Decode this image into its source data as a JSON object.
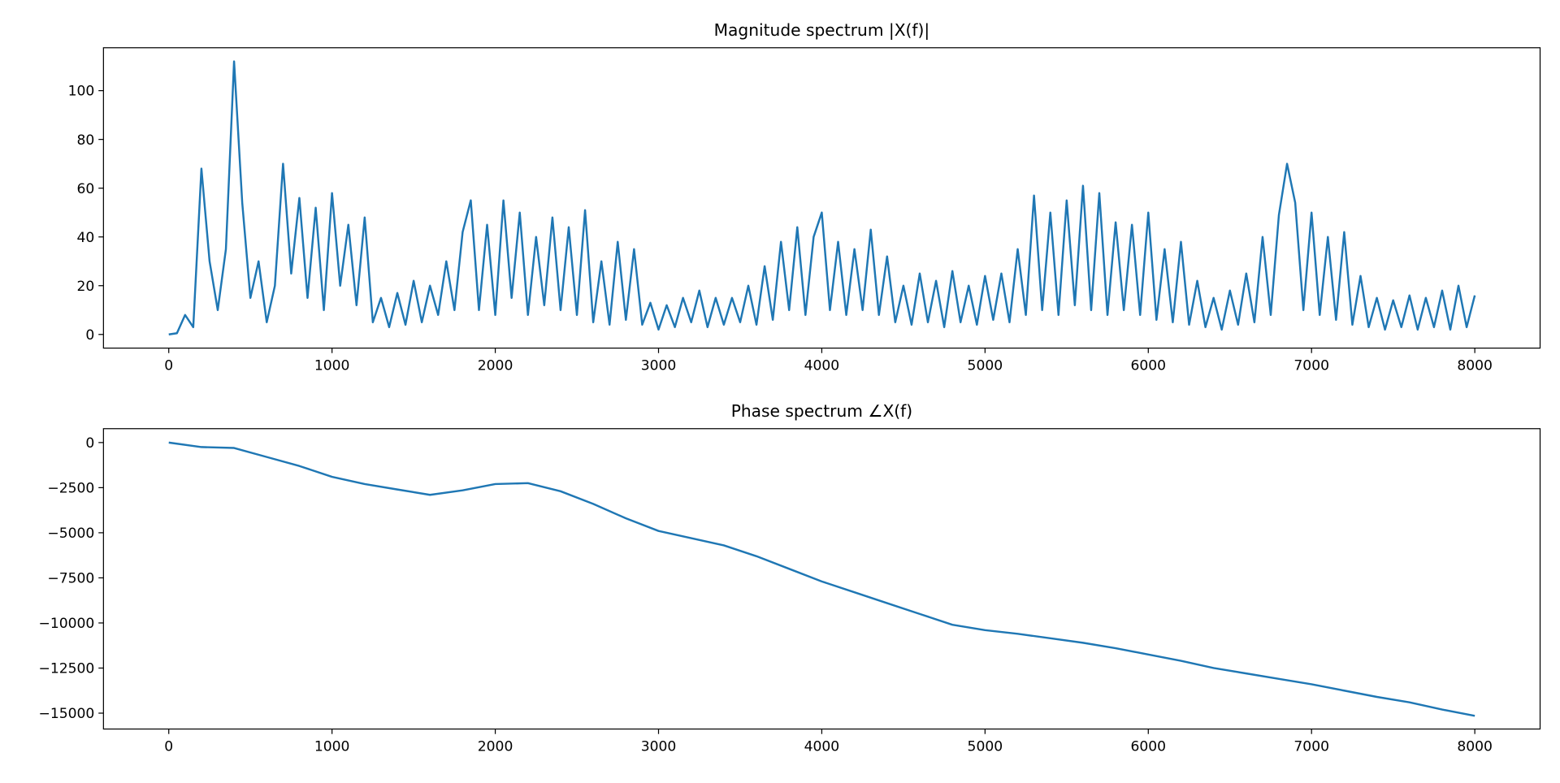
{
  "chart_data": [
    {
      "type": "line",
      "title": "Magnitude spectrum |X(f)|",
      "x": [
        0,
        50,
        100,
        150,
        200,
        250,
        300,
        350,
        400,
        450,
        500,
        550,
        600,
        650,
        700,
        750,
        800,
        850,
        900,
        950,
        1000,
        1050,
        1100,
        1150,
        1200,
        1250,
        1300,
        1350,
        1400,
        1450,
        1500,
        1550,
        1600,
        1650,
        1700,
        1750,
        1800,
        1850,
        1900,
        1950,
        2000,
        2050,
        2100,
        2150,
        2200,
        2250,
        2300,
        2350,
        2400,
        2450,
        2500,
        2550,
        2600,
        2650,
        2700,
        2750,
        2800,
        2850,
        2900,
        2950,
        3000,
        3050,
        3100,
        3150,
        3200,
        3250,
        3300,
        3350,
        3400,
        3450,
        3500,
        3550,
        3600,
        3650,
        3700,
        3750,
        3800,
        3850,
        3900,
        3950,
        4000,
        4050,
        4100,
        4150,
        4200,
        4250,
        4300,
        4350,
        4400,
        4450,
        4500,
        4550,
        4600,
        4650,
        4700,
        4750,
        4800,
        4850,
        4900,
        4950,
        5000,
        5050,
        5100,
        5150,
        5200,
        5250,
        5300,
        5350,
        5400,
        5450,
        5500,
        5550,
        5600,
        5650,
        5700,
        5750,
        5800,
        5850,
        5900,
        5950,
        6000,
        6050,
        6100,
        6150,
        6200,
        6250,
        6300,
        6350,
        6400,
        6450,
        6500,
        6550,
        6600,
        6650,
        6700,
        6750,
        6800,
        6850,
        6900,
        6950,
        7000,
        7050,
        7100,
        7150,
        7200,
        7250,
        7300,
        7350,
        7400,
        7450,
        7500,
        7550,
        7600,
        7650,
        7700,
        7750,
        7800,
        7850,
        7900,
        7950,
        8000
      ],
      "series": [
        {
          "color": "#1f77b4",
          "values": [
            0,
            0.5,
            8,
            3,
            68,
            30,
            10,
            35,
            112,
            54,
            15,
            30,
            5,
            20,
            70,
            25,
            56,
            15,
            52,
            10,
            58,
            20,
            45,
            12,
            48,
            5,
            15,
            3,
            17,
            4,
            22,
            5,
            20,
            8,
            30,
            10,
            42,
            55,
            10,
            45,
            8,
            55,
            15,
            50,
            8,
            40,
            12,
            48,
            10,
            44,
            8,
            51,
            5,
            30,
            4,
            38,
            6,
            35,
            4,
            13,
            2,
            12,
            3,
            15,
            5,
            18,
            3,
            15,
            4,
            15,
            5,
            20,
            4,
            28,
            6,
            38,
            10,
            44,
            8,
            40,
            50,
            10,
            38,
            8,
            35,
            10,
            43,
            8,
            32,
            5,
            20,
            4,
            25,
            5,
            22,
            3,
            26,
            5,
            20,
            4,
            24,
            6,
            25,
            5,
            35,
            8,
            57,
            10,
            50,
            8,
            55,
            12,
            61,
            10,
            58,
            8,
            46,
            10,
            45,
            8,
            50,
            6,
            35,
            5,
            38,
            4,
            22,
            3,
            15,
            2,
            18,
            4,
            25,
            5,
            40,
            8,
            49,
            70,
            54,
            10,
            50,
            8,
            40,
            6,
            42,
            4,
            24,
            3,
            15,
            2,
            14,
            3,
            16,
            2,
            15,
            3,
            18,
            2,
            20,
            3,
            16
          ]
        }
      ],
      "xlim": [
        -400,
        8400
      ],
      "xticks": [
        0,
        1000,
        2000,
        3000,
        4000,
        5000,
        6000,
        7000,
        8000
      ],
      "ylim": [
        -5.6,
        117.6
      ],
      "yticks": [
        0,
        20,
        40,
        60,
        80,
        100
      ]
    },
    {
      "type": "line",
      "title": "Phase spectrum ∠X(f)",
      "x": [
        0,
        200,
        400,
        600,
        800,
        1000,
        1200,
        1400,
        1600,
        1800,
        2000,
        2200,
        2400,
        2600,
        2800,
        3000,
        3200,
        3400,
        3600,
        3800,
        4000,
        4200,
        4400,
        4600,
        4800,
        5000,
        5200,
        5400,
        5600,
        5800,
        6000,
        6200,
        6400,
        6600,
        6800,
        7000,
        7200,
        7400,
        7600,
        7800,
        8000
      ],
      "series": [
        {
          "color": "#1f77b4",
          "values": [
            0,
            -250,
            -300,
            -800,
            -1300,
            -1900,
            -2300,
            -2600,
            -2900,
            -2650,
            -2300,
            -2250,
            -2700,
            -3400,
            -4200,
            -4900,
            -5300,
            -5700,
            -6300,
            -7000,
            -7700,
            -8300,
            -8900,
            -9500,
            -10100,
            -10400,
            -10600,
            -10850,
            -11100,
            -11400,
            -11750,
            -12100,
            -12500,
            -12800,
            -13100,
            -13400,
            -13750,
            -14100,
            -14400,
            -14800,
            -15150
          ]
        }
      ],
      "xlim": [
        -400,
        8400
      ],
      "xticks": [
        0,
        1000,
        2000,
        3000,
        4000,
        5000,
        6000,
        7000,
        8000
      ],
      "ylim": [
        -15880,
        770
      ],
      "yticks": [
        {
          "value": -15000,
          "label": "−15000"
        },
        {
          "value": -12500,
          "label": "−12500"
        },
        {
          "value": -10000,
          "label": "−10000"
        },
        {
          "value": -7500,
          "label": "−7500"
        },
        {
          "value": -5000,
          "label": "−5000"
        },
        {
          "value": -2500,
          "label": "−2500"
        },
        0
      ]
    }
  ]
}
